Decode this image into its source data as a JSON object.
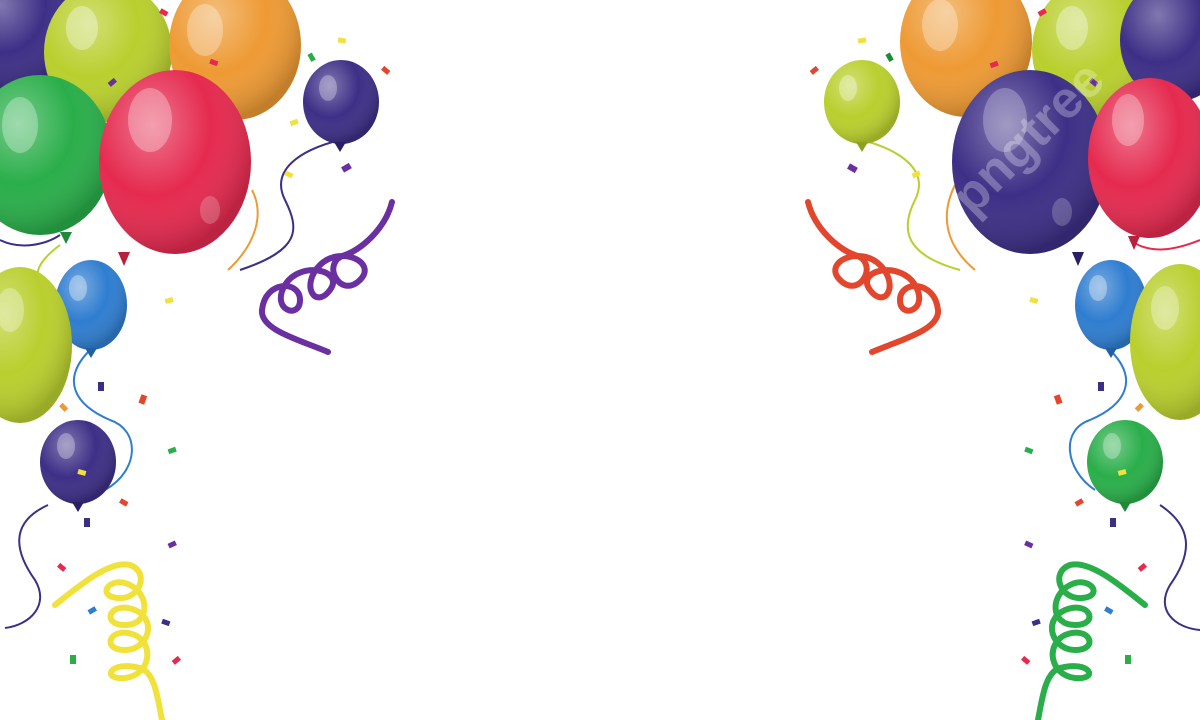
{
  "scene": {
    "background": "#ffffff",
    "watermark": "pngtree",
    "palette": {
      "red": "#e52a4f",
      "orange": "#ee9a34",
      "lime": "#b9cf2e",
      "green": "#2aae4a",
      "blue": "#2f7dd0",
      "purple": "#3d2f86",
      "violet": "#6a2fa0",
      "yellow": "#f0e23a",
      "coral": "#e2472d"
    },
    "balloon_colors_left": [
      "purple",
      "lime",
      "orange",
      "red",
      "green",
      "purple",
      "blue",
      "lime",
      "purple"
    ],
    "balloon_colors_right": [
      "orange",
      "lime",
      "purple",
      "lime",
      "purple",
      "red",
      "blue",
      "lime",
      "green"
    ],
    "streamer_colors": [
      "violet",
      "yellow",
      "coral",
      "green"
    ],
    "confetti_colors": [
      "red",
      "yellow",
      "green",
      "blue",
      "purple",
      "orange",
      "violet"
    ]
  }
}
